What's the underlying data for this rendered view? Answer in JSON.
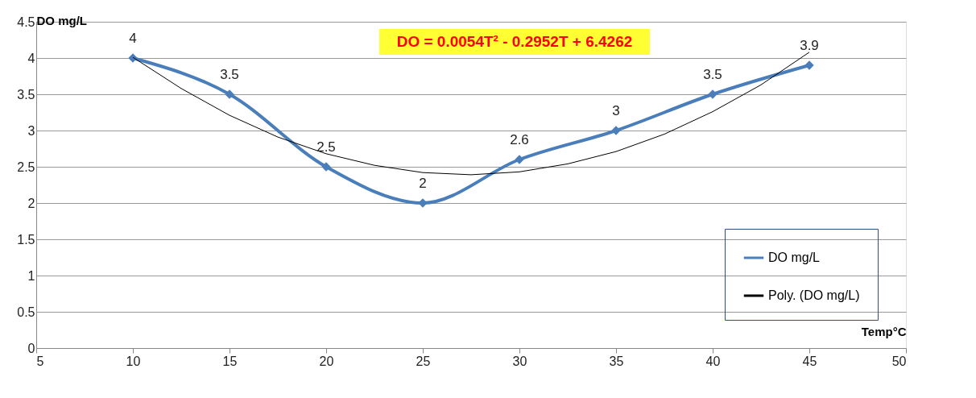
{
  "chart_data": {
    "type": "line",
    "xlabel": "Temp°C",
    "ylabel": "DO mg/L",
    "x": [
      10,
      15,
      20,
      25,
      30,
      35,
      40,
      45
    ],
    "series": [
      {
        "name": "DO mg/L",
        "color": "#4a7ebb",
        "values": [
          4,
          3.5,
          2.5,
          2,
          2.6,
          3,
          3.5,
          3.9
        ],
        "value_labels": [
          "4",
          "3.5",
          "2.5",
          "2",
          "2.6",
          "3",
          "3.5",
          "3.9"
        ],
        "marker": "diamond"
      },
      {
        "name": "Poly. (DO mg/L)",
        "color": "#000000",
        "type": "line",
        "marker": "none",
        "x": [
          10,
          12.5,
          15,
          17.5,
          20,
          22.5,
          25,
          27.5,
          30,
          32.5,
          35,
          37.5,
          40,
          42.5,
          45
        ],
        "values": [
          4.01,
          3.58,
          3.21,
          2.91,
          2.68,
          2.52,
          2.42,
          2.39,
          2.43,
          2.54,
          2.71,
          2.95,
          3.26,
          3.63,
          4.08
        ]
      }
    ],
    "annotations": [
      "DO = 0.0054T² - 0.2952T + 6.4262"
    ],
    "xlim": [
      5,
      50
    ],
    "xticks": [
      5,
      10,
      15,
      20,
      25,
      30,
      35,
      40,
      45,
      50
    ],
    "ylim": [
      0,
      4.5
    ],
    "yticks": [
      0,
      0.5,
      1,
      1.5,
      2,
      2.5,
      3,
      3.5,
      4,
      4.5
    ],
    "grid": "y",
    "legend": "bottom right"
  }
}
